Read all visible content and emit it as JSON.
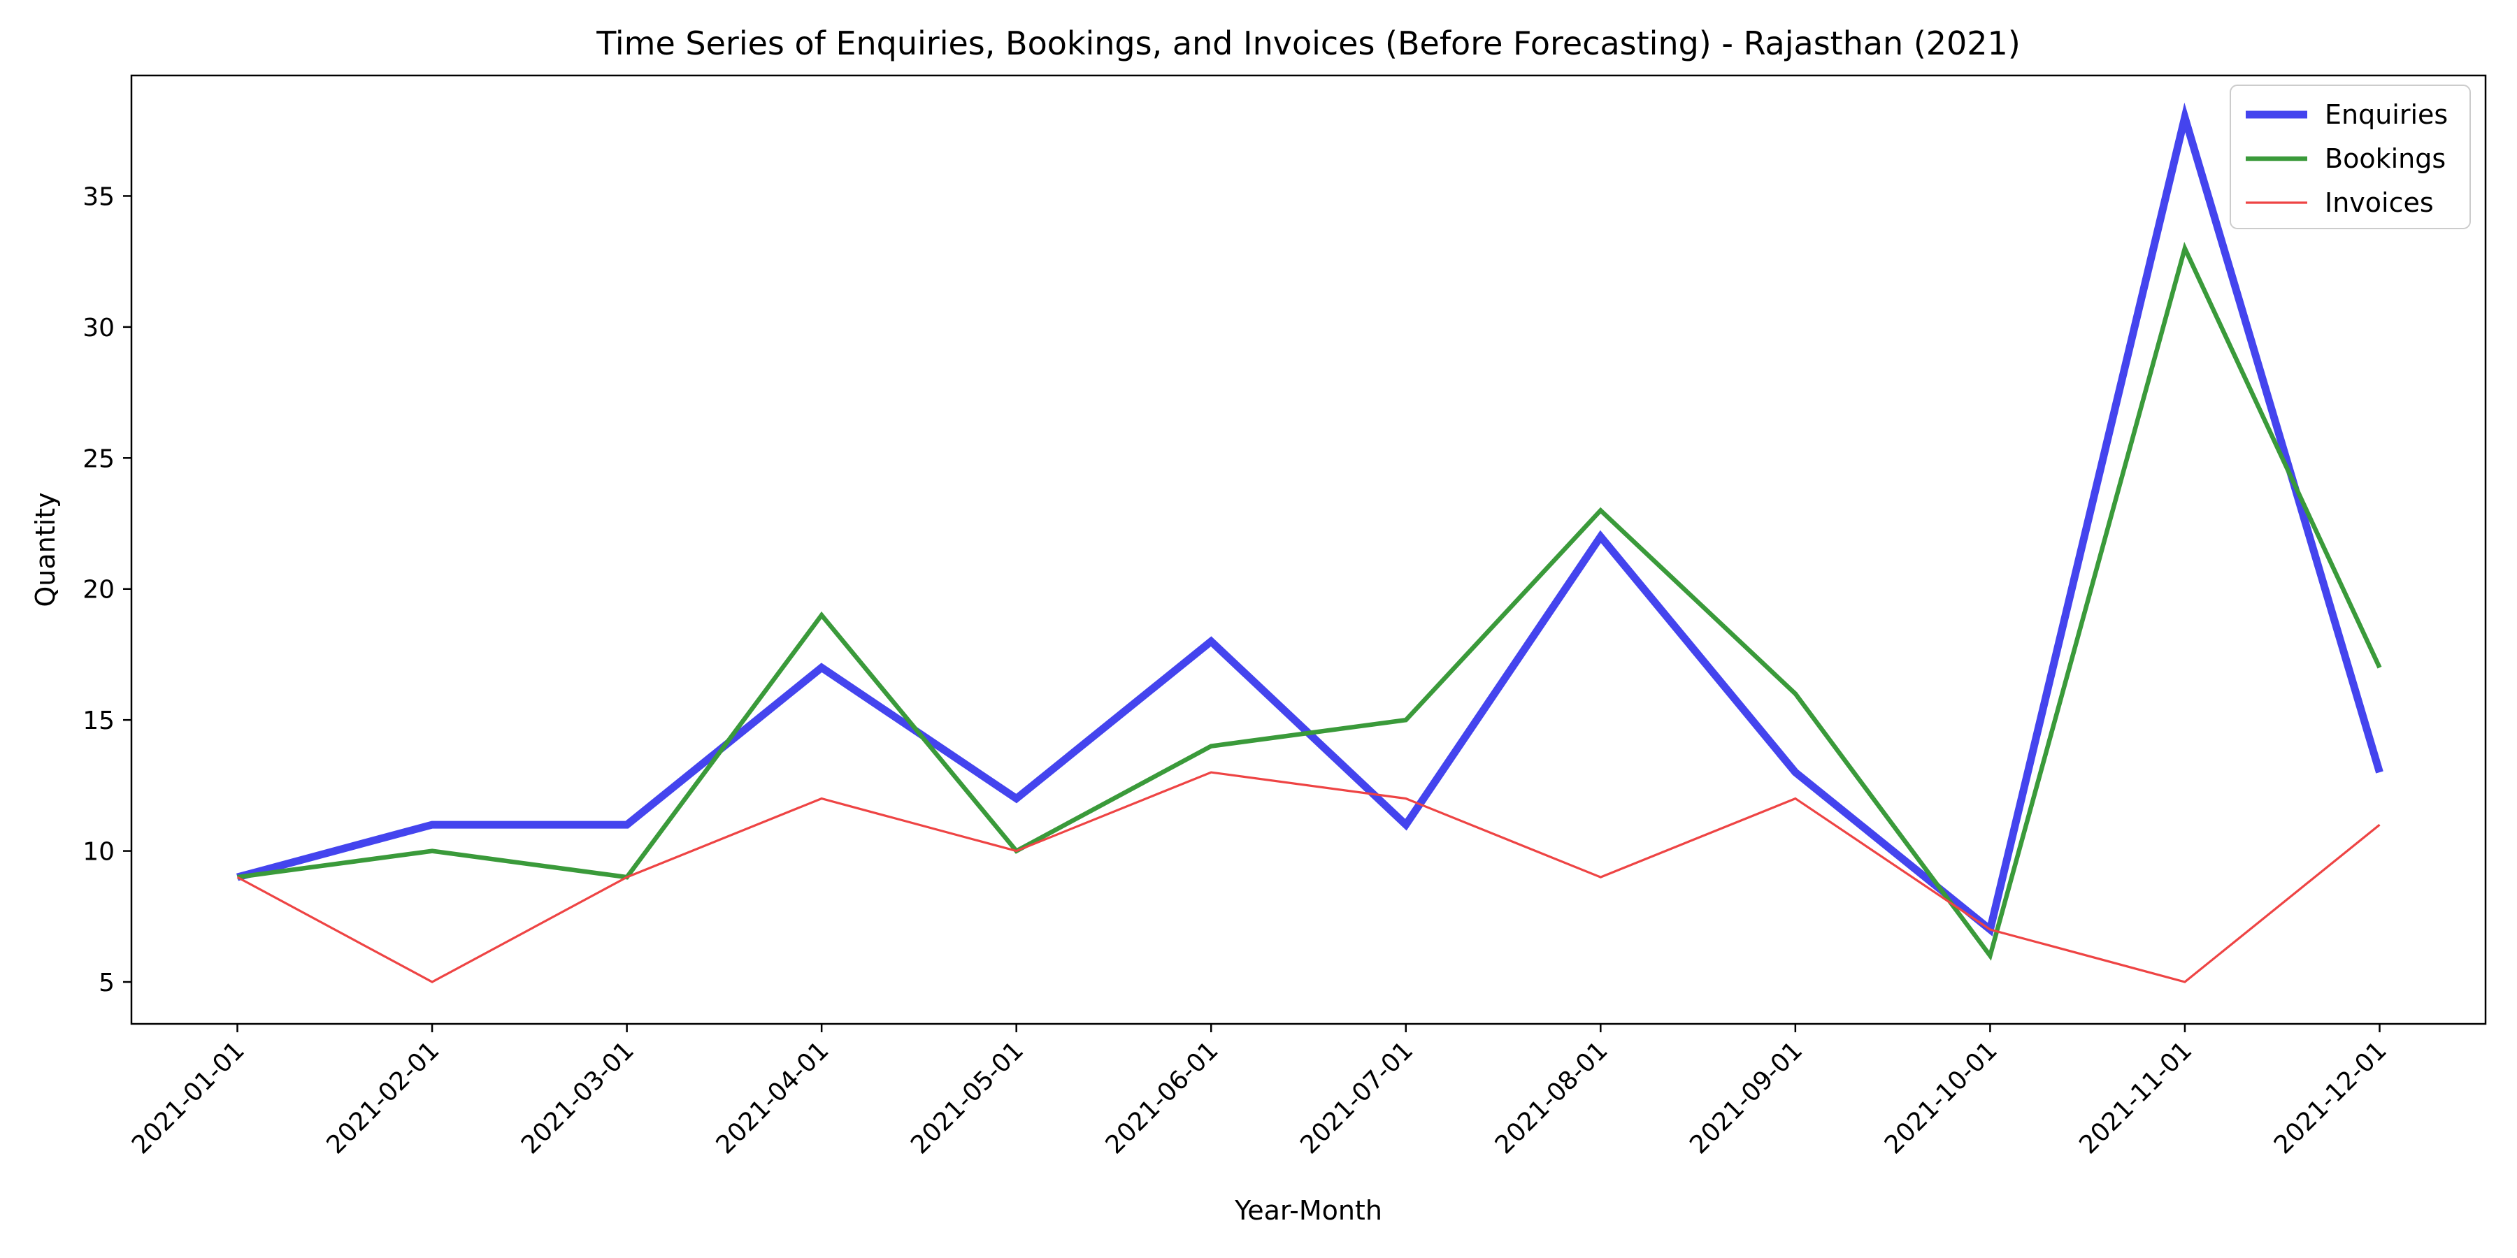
{
  "chart_data": {
    "type": "line",
    "title": "Time Series of Enquiries, Bookings, and Invoices (Before Forecasting) - Rajasthan (2021)",
    "xlabel": "Year-Month",
    "ylabel": "Quantity",
    "categories": [
      "2021-01-01",
      "2021-02-01",
      "2021-03-01",
      "2021-04-01",
      "2021-05-01",
      "2021-06-01",
      "2021-07-01",
      "2021-08-01",
      "2021-09-01",
      "2021-10-01",
      "2021-11-01",
      "2021-12-01"
    ],
    "ylim": [
      3.4,
      39.6
    ],
    "yticks": [
      5,
      10,
      15,
      20,
      25,
      30,
      35
    ],
    "grid": false,
    "legend_position": "top-right",
    "series": [
      {
        "name": "Enquiries",
        "color": "#4444ee",
        "style": "thick",
        "values": [
          9,
          11,
          11,
          17,
          12,
          18,
          11,
          22,
          13,
          7,
          38,
          13
        ]
      },
      {
        "name": "Bookings",
        "color": "#3a9a3a",
        "style": "medium",
        "values": [
          9,
          10,
          9,
          19,
          10,
          14,
          15,
          23,
          16,
          6,
          33,
          17
        ]
      },
      {
        "name": "Invoices",
        "color": "#ee4444",
        "style": "thin",
        "values": [
          9,
          5,
          9,
          12,
          10,
          13,
          12,
          9,
          12,
          7,
          5,
          11
        ]
      }
    ]
  }
}
